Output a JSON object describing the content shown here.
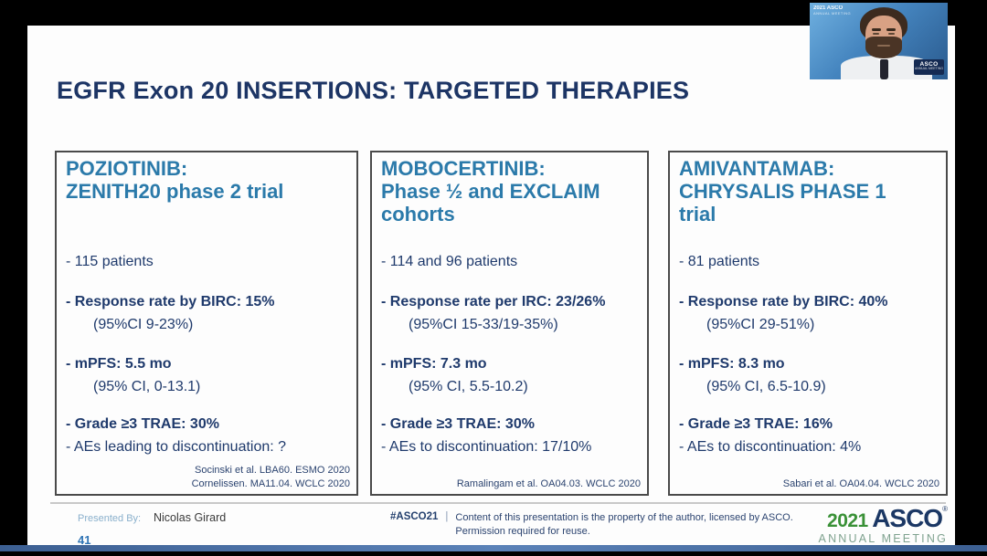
{
  "title": "EGFR Exon 20 INSERTIONS: TARGETED THERAPIES",
  "panels": [
    {
      "header": "POZIOTINIB:\nZENITH20 phase 2 trial",
      "patients": "- 115 patients",
      "response": "- Response rate by BIRC: 15%",
      "response_ci": "(95%CI 9-23%)",
      "mpfs": "- mPFS: 5.5 mo",
      "mpfs_ci": "(95% CI, 0-13.1)",
      "trae": "- Grade ≥3 TRAE: 30%",
      "discontinuation": "- AEs leading to discontinuation: ?",
      "citation": "Socinski et al. LBA60. ESMO 2020\nCornelissen. MA11.04. WCLC 2020"
    },
    {
      "header": "MOBOCERTINIB:\nPhase ½ and EXCLAIM\ncohorts",
      "patients": "- 114 and 96 patients",
      "response": "- Response rate per IRC: 23/26%",
      "response_ci": "(95%CI 15-33/19-35%)",
      "mpfs": "- mPFS: 7.3 mo",
      "mpfs_ci": "(95% CI, 5.5-10.2)",
      "trae": "- Grade ≥3 TRAE: 30%",
      "discontinuation": "- AEs to discontinuation: 17/10%",
      "citation": "Ramalingam et al. OA04.03. WCLC 2020"
    },
    {
      "header": "AMIVANTAMAB:\nCHRYSALIS PHASE 1\ntrial",
      "patients": "- 81 patients",
      "response": "- Response rate by BIRC: 40%",
      "response_ci": "(95%CI 29-51%)",
      "mpfs": "- mPFS: 8.3 mo",
      "mpfs_ci": "(95% CI, 6.5-10.9)",
      "trae": "- Grade ≥3 TRAE: 16%",
      "discontinuation": "- AEs to discontinuation: 4%",
      "citation": "Sabari et al. OA04.04. WCLC 2020"
    }
  ],
  "footer": {
    "presented_by_label": "Presented By:",
    "presenter": "Nicolas Girard",
    "page_number": "41",
    "hashtag": "#ASCO21",
    "separator": "|",
    "license_line1": "Content of this presentation is the property of the author, licensed by ASCO.",
    "license_line2": "Permission required for reuse.",
    "logo": {
      "year": "2021",
      "org": "ASCO",
      "reg": "®",
      "meeting": "ANNUAL MEETING"
    }
  },
  "webcam": {
    "watermark_main": "2021 ASCO",
    "watermark_sub": "ANNUAL MEETING",
    "badge_main": "ASCO",
    "badge_sub": "ANNUAL MEETING"
  },
  "colors": {
    "panel_header_blue": "#2b7aaa",
    "body_navy": "#1f3a6c",
    "title_navy": "#1d3565",
    "presented_by_blue": "#8ab0cc",
    "page_number_blue": "#2f74b5",
    "logo_green": "#3a9137",
    "logo_navy": "#1b3764",
    "logo_meeting_sage": "#7fa28f"
  }
}
